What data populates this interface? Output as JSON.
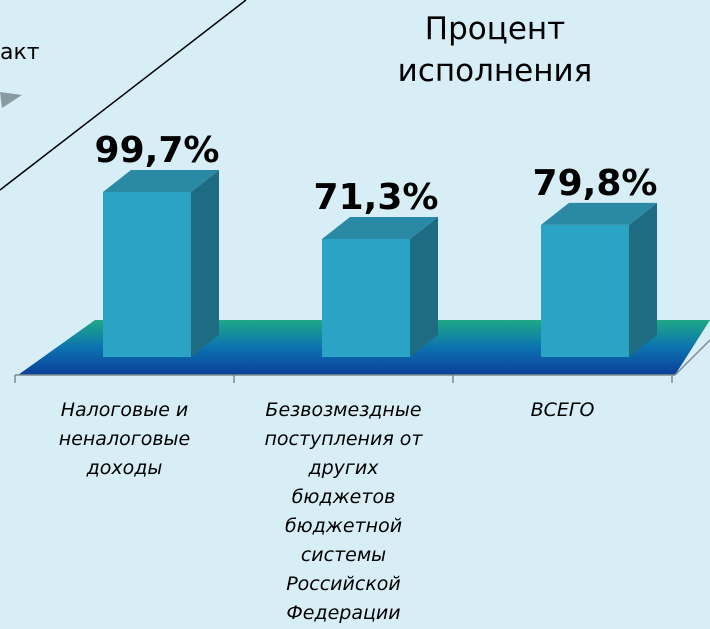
{
  "chart_data": {
    "type": "bar3d",
    "title": "Процент исполнения",
    "annotation": "акт",
    "categories": [
      "Налоговые и неналоговые доходы",
      "Безвозмездные поступления от других бюджетов бюджетной системы Российской Федерации",
      "ВСЕГО"
    ],
    "values": [
      99.7,
      71.3,
      79.8
    ],
    "value_labels": [
      "99,7%",
      "71,3%",
      "79,8%"
    ],
    "color": "#2aa3c4"
  }
}
